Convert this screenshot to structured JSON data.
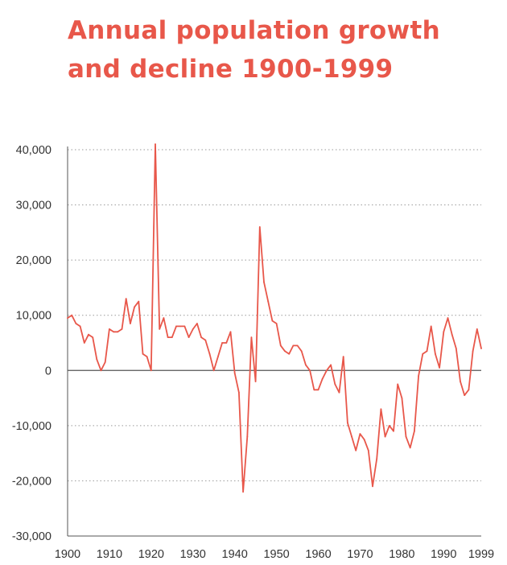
{
  "title": "Annual population growth and decline 1900-1999",
  "colors": {
    "accent": "#e8574a",
    "axis": "#555555",
    "grid": "#9a9a9a",
    "text": "#333333"
  },
  "chart_data": {
    "type": "line",
    "title": "Annual population growth and decline 1900-1999",
    "xlabel": "",
    "ylabel": "",
    "xlim": [
      1900,
      1999
    ],
    "ylim": [
      -30000,
      40000
    ],
    "x_ticks": [
      "1900",
      "1910",
      "1920",
      "1930",
      "1940",
      "1950",
      "1960",
      "1970",
      "1980",
      "1990",
      "1999"
    ],
    "y_ticks": [
      "40,000",
      "30,000",
      "20,000",
      "10,000",
      "0",
      "-10,000",
      "-20,000",
      "-30,000"
    ],
    "grid": "horizontal dotted",
    "x": [
      1900,
      1901,
      1902,
      1903,
      1904,
      1905,
      1906,
      1907,
      1908,
      1909,
      1910,
      1911,
      1912,
      1913,
      1914,
      1915,
      1916,
      1917,
      1918,
      1919,
      1920,
      1921,
      1922,
      1923,
      1924,
      1925,
      1926,
      1927,
      1928,
      1929,
      1930,
      1931,
      1932,
      1933,
      1934,
      1935,
      1936,
      1937,
      1938,
      1939,
      1940,
      1941,
      1942,
      1943,
      1944,
      1945,
      1946,
      1947,
      1948,
      1949,
      1950,
      1951,
      1952,
      1953,
      1954,
      1955,
      1956,
      1957,
      1958,
      1959,
      1960,
      1961,
      1962,
      1963,
      1964,
      1965,
      1966,
      1967,
      1968,
      1969,
      1970,
      1971,
      1972,
      1973,
      1974,
      1975,
      1976,
      1977,
      1978,
      1979,
      1980,
      1981,
      1982,
      1983,
      1984,
      1985,
      1986,
      1987,
      1988,
      1989,
      1990,
      1991,
      1992,
      1993,
      1994,
      1995,
      1996,
      1997,
      1998,
      1999
    ],
    "series": [
      {
        "values": [
          9500,
          10000,
          8500,
          8000,
          5000,
          6500,
          6000,
          2000,
          0,
          1500,
          7500,
          7000,
          7000,
          7500,
          13000,
          8500,
          11500,
          12500,
          3000,
          2500,
          0,
          41000,
          7500,
          9500,
          6000,
          6000,
          8000,
          8000,
          8000,
          6000,
          7500,
          8500,
          6000,
          5500,
          3000,
          0,
          2500,
          5000,
          5000,
          7000,
          -500,
          -4000,
          -22000,
          -12000,
          6000,
          -2000,
          26000,
          16000,
          12500,
          9000,
          8500,
          4500,
          3500,
          3000,
          4500,
          4500,
          3500,
          1000,
          0,
          -3500,
          -3500,
          -1500,
          0,
          1000,
          -2500,
          -4000,
          2500,
          -9500,
          -12000,
          -14500,
          -11500,
          -12500,
          -14500,
          -21000,
          -16000,
          -7000,
          -12000,
          -10000,
          -11000,
          -2500,
          -5000,
          -12000,
          -14000,
          -11000,
          -1000,
          3000,
          3500,
          8000,
          3000,
          500,
          7000,
          9500,
          6500,
          4000,
          -2000,
          -4500,
          -3500,
          3500,
          7500,
          4000
        ]
      }
    ]
  }
}
